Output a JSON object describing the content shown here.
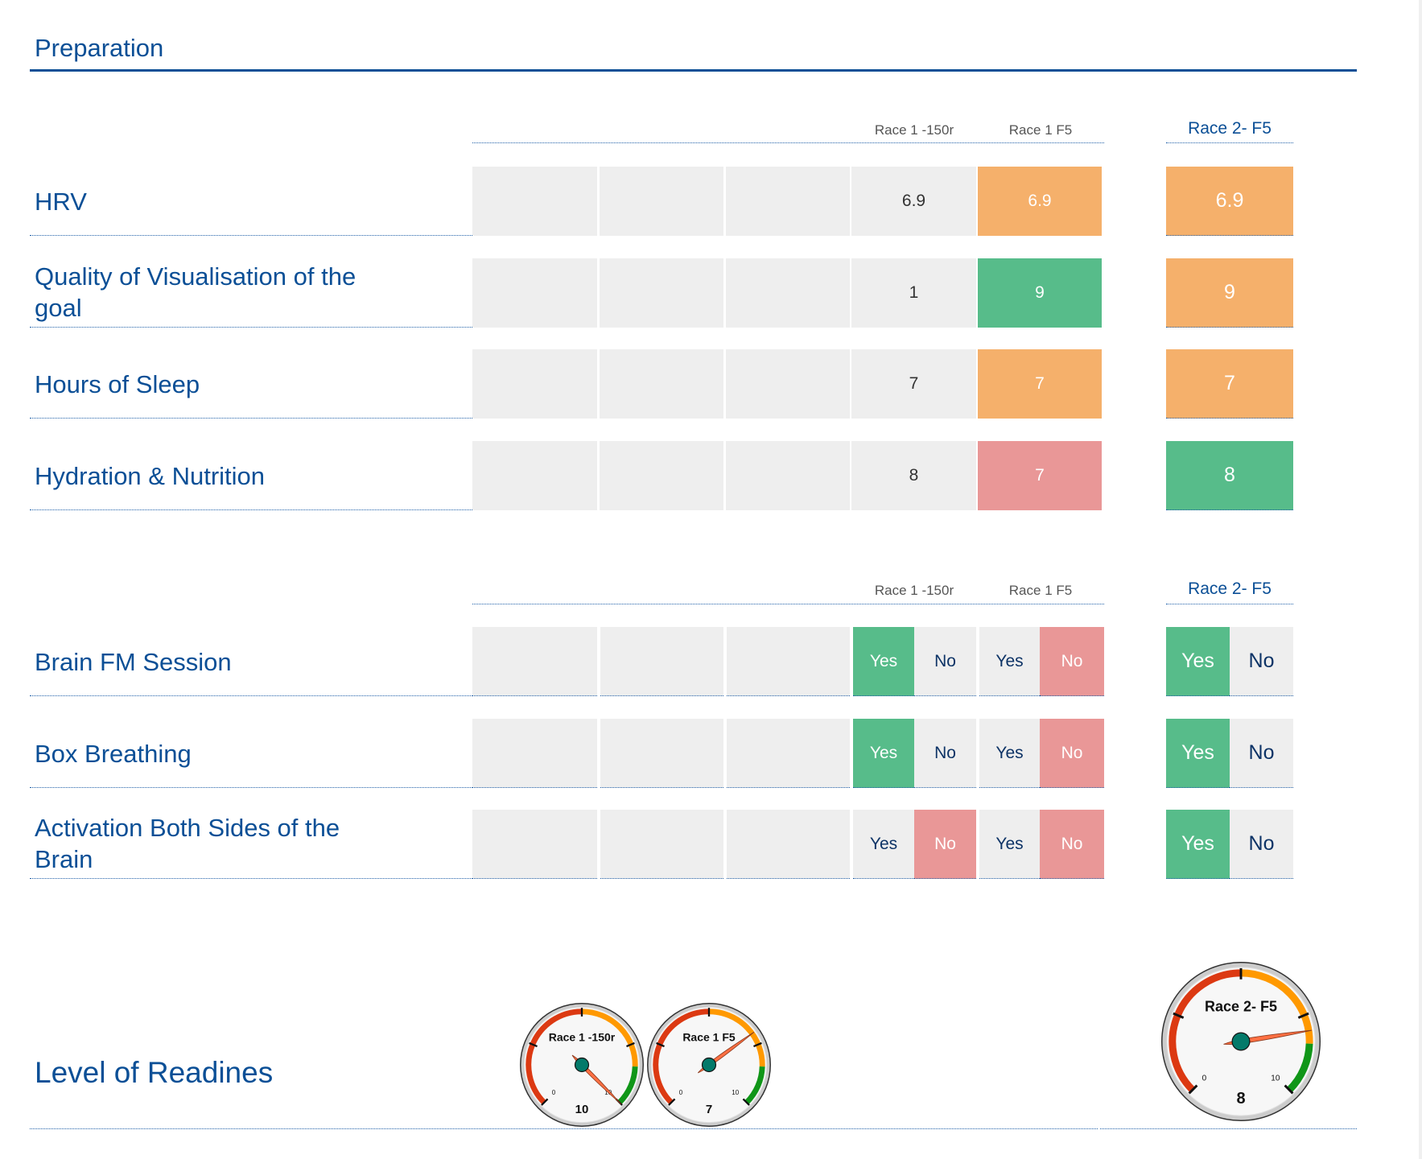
{
  "page": {
    "title": "Preparation",
    "readiness_label": "Level of Readines"
  },
  "colors": {
    "heading_blue": "#0b4f96",
    "cell_empty": "#eeeeee",
    "orange": "#f5b06b",
    "green": "#57bc8a",
    "pink": "#e99797"
  },
  "section1": {
    "headers": {
      "race1_150r": "Race 1 -150r",
      "race1_f5": "Race 1 F5",
      "race2_f5": "Race 2- F5"
    },
    "rows": [
      {
        "label": "HRV",
        "race1_150r": "6.9",
        "race1_f5": "6.9",
        "race1_f5_color": "orange",
        "race2_f5": "6.9",
        "race2_f5_color": "orange"
      },
      {
        "label": "Quality of Visualisation of the goal",
        "race1_150r": "1",
        "race1_f5": "9",
        "race1_f5_color": "green",
        "race2_f5": "9",
        "race2_f5_color": "orange"
      },
      {
        "label": "Hours of Sleep",
        "race1_150r": "7",
        "race1_f5": "7",
        "race1_f5_color": "orange",
        "race2_f5": "7",
        "race2_f5_color": "orange"
      },
      {
        "label": "Hydration & Nutrition",
        "race1_150r": "8",
        "race1_f5": "7",
        "race1_f5_color": "pink",
        "race2_f5": "8",
        "race2_f5_color": "green"
      }
    ]
  },
  "section2": {
    "headers": {
      "race1_150r": "Race 1 -150r",
      "race1_f5": "Race 1 F5",
      "race2_f5": "Race 2- F5"
    },
    "yes_label": "Yes",
    "no_label": "No",
    "rows": [
      {
        "label": "Brain FM Session",
        "race1_150r": "Yes",
        "race1_f5": "No",
        "race2_f5": "Yes"
      },
      {
        "label": "Box Breathing",
        "race1_150r": "Yes",
        "race1_f5": "No",
        "race2_f5": "Yes"
      },
      {
        "label": "Activation Both Sides of the Brain",
        "race1_150r": "No",
        "race1_f5": "No",
        "race2_f5": "Yes"
      }
    ]
  },
  "gauges": [
    {
      "title": "Race 1 -150r",
      "value": 10,
      "value_label": "10",
      "min_label": "0",
      "max_label": "10"
    },
    {
      "title": "Race 1 F5",
      "value": 7,
      "value_label": "7",
      "min_label": "0",
      "max_label": "10"
    },
    {
      "title": "Race 2- F5",
      "value": 8,
      "value_label": "8",
      "min_label": "0",
      "max_label": "10"
    }
  ],
  "gauge_scale": {
    "min": 0,
    "max": 10,
    "bands": [
      {
        "from": 0,
        "to": 5,
        "color": "#dc3912"
      },
      {
        "from": 5,
        "to": 8.4,
        "color": "#ff9900"
      },
      {
        "from": 8.4,
        "to": 10,
        "color": "#109618"
      }
    ]
  }
}
